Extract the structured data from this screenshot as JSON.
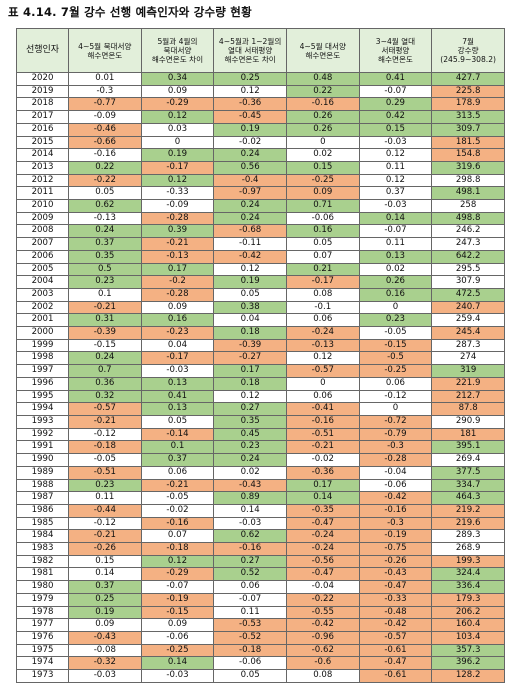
{
  "title": "표 4.14. 7월 강수 선행 예측인자와 강수량 현황",
  "table": {
    "header": [
      "선행인자",
      "4~5월 북대서양\n해수면온도",
      "5월과 4월의\n북대서양\n해수면온도 차이",
      "4~5월과 1~2월의\n열대 서태평양\n해수면온도 차이",
      "4~5월 대서양\n해수면온도",
      "3~4월 열대\n서태평양\n해수면온도",
      "7월\n강수량\n(245.9~308.2)"
    ],
    "fill_colors": {
      "w": "#ffffff",
      "g": "#a9d08e",
      "o": "#f4b183"
    },
    "rows": [
      {
        "cells": [
          "2020",
          "0.01",
          "0.34",
          "0.25",
          "0.48",
          "0.41",
          "427.7"
        ],
        "fills": "wggggg"
      },
      {
        "cells": [
          "2019",
          "-0.3",
          "0.09",
          "0.12",
          "0.22",
          "-0.07",
          "225.8"
        ],
        "fills": "wwwgwo"
      },
      {
        "cells": [
          "2018",
          "-0.77",
          "-0.29",
          "-0.36",
          "-0.16",
          "0.29",
          "178.9"
        ],
        "fills": "oooogo"
      },
      {
        "cells": [
          "2017",
          "-0.09",
          "0.12",
          "-0.45",
          "0.26",
          "0.42",
          "313.5"
        ],
        "fills": "wgoggg"
      },
      {
        "cells": [
          "2016",
          "-0.46",
          "0.03",
          "0.19",
          "0.26",
          "0.15",
          "309.7"
        ],
        "fills": "owgggg"
      },
      {
        "cells": [
          "2015",
          "-0.66",
          "0",
          "-0.02",
          "0",
          "-0.03",
          "181.5"
        ],
        "fills": "owwwwo"
      },
      {
        "cells": [
          "2014",
          "-0.16",
          "0.19",
          "0.24",
          "0.02",
          "0.12",
          "154.8"
        ],
        "fills": "wggwwo"
      },
      {
        "cells": [
          "2013",
          "0.22",
          "-0.17",
          "0.56",
          "0.15",
          "0.11",
          "319.6"
        ],
        "fills": "goggwg"
      },
      {
        "cells": [
          "2012",
          "-0.22",
          "0.12",
          "-0.4",
          "-0.25",
          "0.12",
          "298.8"
        ],
        "fills": "ogoowb"
      },
      {
        "cells": [
          "2011",
          "0.05",
          "-0.33",
          "-0.97",
          "0.09",
          "0.37",
          "498.1"
        ],
        "fills": "wwoowg"
      },
      {
        "cells": [
          "2010",
          "0.62",
          "-0.09",
          "0.24",
          "0.71",
          "-0.03",
          "258"
        ],
        "fills": "gwggww"
      },
      {
        "cells": [
          "2009",
          "-0.13",
          "-0.28",
          "0.24",
          "-0.06",
          "0.14",
          "498.8"
        ],
        "fills": "wogwgg"
      },
      {
        "cells": [
          "2008",
          "0.24",
          "0.39",
          "-0.68",
          "0.16",
          "-0.07",
          "246.2"
        ],
        "fills": "ggogww"
      },
      {
        "cells": [
          "2007",
          "0.37",
          "-0.21",
          "-0.11",
          "0.05",
          "0.11",
          "247.3"
        ],
        "fills": "gowwww"
      },
      {
        "cells": [
          "2006",
          "0.35",
          "-0.13",
          "-0.42",
          "0.07",
          "0.13",
          "642.2"
        ],
        "fills": "goowgg"
      },
      {
        "cells": [
          "2005",
          "0.5",
          "0.17",
          "0.12",
          "0.21",
          "0.02",
          "295.5"
        ],
        "fills": "ggwgww"
      },
      {
        "cells": [
          "2004",
          "0.23",
          "-0.2",
          "0.19",
          "-0.17",
          "0.26",
          "307.9"
        ],
        "fills": "gogogw"
      },
      {
        "cells": [
          "2003",
          "0.1",
          "-0.28",
          "0.05",
          "0.08",
          "0.16",
          "472.5"
        ],
        "fills": "wowwgg"
      },
      {
        "cells": [
          "2002",
          "-0.21",
          "0.09",
          "0.38",
          "-0.1",
          "0",
          "240.7"
        ],
        "fills": "owgwwo"
      },
      {
        "cells": [
          "2001",
          "0.31",
          "0.16",
          "0.04",
          "0.06",
          "0.23",
          "259.4"
        ],
        "fills": "ggwwgw"
      },
      {
        "cells": [
          "2000",
          "-0.39",
          "-0.23",
          "0.18",
          "-0.24",
          "-0.05",
          "245.4"
        ],
        "fills": "oogowo"
      },
      {
        "cells": [
          "1999",
          "-0.15",
          "0.04",
          "-0.39",
          "-0.13",
          "-0.15",
          "287.3"
        ],
        "fills": "wwooow"
      },
      {
        "cells": [
          "1998",
          "0.24",
          "-0.17",
          "-0.27",
          "0.12",
          "-0.5",
          "274"
        ],
        "fills": "goowow"
      },
      {
        "cells": [
          "1997",
          "0.7",
          "-0.03",
          "0.17",
          "-0.57",
          "-0.25",
          "319"
        ],
        "fills": "gwgoog"
      },
      {
        "cells": [
          "1996",
          "0.36",
          "0.13",
          "0.18",
          "0",
          "0.06",
          "221.9"
        ],
        "fills": "gggwwo"
      },
      {
        "cells": [
          "1995",
          "0.32",
          "0.41",
          "0.12",
          "0.06",
          "-0.12",
          "212.7"
        ],
        "fills": "ggwwwo"
      },
      {
        "cells": [
          "1994",
          "-0.57",
          "0.13",
          "0.27",
          "-0.41",
          "0",
          "87.8"
        ],
        "fills": "oggowo"
      },
      {
        "cells": [
          "1993",
          "-0.21",
          "0.05",
          "0.35",
          "-0.16",
          "-0.72",
          "290.9"
        ],
        "fills": "owgoow"
      },
      {
        "cells": [
          "1992",
          "-0.12",
          "-0.14",
          "0.45",
          "-0.51",
          "-0.79",
          "181"
        ],
        "fills": "wogooo"
      },
      {
        "cells": [
          "1991",
          "-0.18",
          "0.1",
          "0.23",
          "-0.21",
          "-0.3",
          "395.1"
        ],
        "fills": "oggoog"
      },
      {
        "cells": [
          "1990",
          "-0.05",
          "0.37",
          "0.24",
          "-0.02",
          "-0.28",
          "269.4"
        ],
        "fills": "wggwow"
      },
      {
        "cells": [
          "1989",
          "-0.51",
          "0.06",
          "0.02",
          "-0.36",
          "-0.04",
          "377.5"
        ],
        "fills": "owwowg"
      },
      {
        "cells": [
          "1988",
          "0.23",
          "-0.21",
          "-0.43",
          "0.17",
          "-0.06",
          "334.7"
        ],
        "fills": "googwg"
      },
      {
        "cells": [
          "1987",
          "0.11",
          "-0.05",
          "0.89",
          "0.14",
          "-0.42",
          "464.3"
        ],
        "fills": "wwggog"
      },
      {
        "cells": [
          "1986",
          "-0.44",
          "-0.02",
          "0.14",
          "-0.35",
          "-0.16",
          "219.2"
        ],
        "fills": "owwooo"
      },
      {
        "cells": [
          "1985",
          "-0.12",
          "-0.16",
          "-0.03",
          "-0.47",
          "-0.3",
          "219.6"
        ],
        "fills": "wowooo"
      },
      {
        "cells": [
          "1984",
          "-0.21",
          "0.07",
          "0.62",
          "-0.24",
          "-0.19",
          "289.3"
        ],
        "fills": "owgoow"
      },
      {
        "cells": [
          "1983",
          "-0.26",
          "-0.18",
          "-0.16",
          "-0.24",
          "-0.75",
          "268.9"
        ],
        "fills": "ooooow"
      },
      {
        "cells": [
          "1982",
          "0.15",
          "0.12",
          "0.27",
          "-0.56",
          "-0.26",
          "199.3"
        ],
        "fills": "wggooo"
      },
      {
        "cells": [
          "1981",
          "0.14",
          "-0.29",
          "0.52",
          "-0.47",
          "-0.43",
          "324.4"
        ],
        "fills": "wogoog"
      },
      {
        "cells": [
          "1980",
          "0.37",
          "-0.07",
          "0.06",
          "-0.04",
          "-0.47",
          "336.4"
        ],
        "fills": "gwwwog"
      },
      {
        "cells": [
          "1979",
          "0.25",
          "-0.19",
          "-0.07",
          "-0.22",
          "-0.33",
          "179.3"
        ],
        "fills": "gowooo"
      },
      {
        "cells": [
          "1978",
          "0.19",
          "-0.15",
          "0.11",
          "-0.55",
          "-0.48",
          "206.2"
        ],
        "fills": "gowooo"
      },
      {
        "cells": [
          "1977",
          "0.09",
          "0.09",
          "-0.53",
          "-0.42",
          "-0.42",
          "160.4"
        ],
        "fills": "wwoooo"
      },
      {
        "cells": [
          "1976",
          "-0.43",
          "-0.06",
          "-0.52",
          "-0.96",
          "-0.57",
          "103.4"
        ],
        "fills": "owoooo"
      },
      {
        "cells": [
          "1975",
          "-0.08",
          "-0.25",
          "-0.18",
          "-0.62",
          "-0.61",
          "357.3"
        ],
        "fills": "woooog"
      },
      {
        "cells": [
          "1974",
          "-0.32",
          "0.14",
          "-0.06",
          "-0.6",
          "-0.47",
          "396.2"
        ],
        "fills": "ogwoog"
      },
      {
        "cells": [
          "1973",
          "-0.03",
          "-0.03",
          "0.05",
          "0.08",
          "-0.61",
          "128.2"
        ],
        "fills": "wwwwoo"
      }
    ]
  }
}
